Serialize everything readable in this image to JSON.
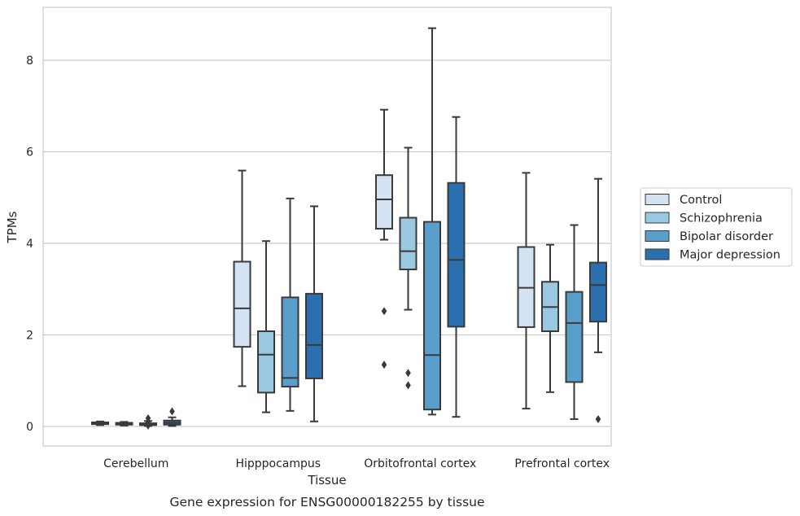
{
  "chart_data": {
    "type": "boxplot",
    "title": "",
    "caption": "Gene expression for ENSG00000182255 by tissue",
    "xlabel": "Tissue",
    "ylabel": "TPMs",
    "ylim": [
      -0.42,
      9.3
    ],
    "yticks": [
      0,
      2,
      4,
      6,
      8
    ],
    "grid": "horizontal",
    "legend_position": "right",
    "categories": [
      "Cerebellum",
      "Hipppocampus",
      "Orbitofrontal cortex",
      "Prefrontal cortex"
    ],
    "series": [
      {
        "name": "Control",
        "color": "#d3e3f3",
        "boxes": [
          {
            "whislo": 0.03,
            "q1": 0.05,
            "med": 0.07,
            "q3": 0.09,
            "whishi": 0.11,
            "fliers": []
          },
          {
            "whislo": 0.88,
            "q1": 1.74,
            "med": 2.58,
            "q3": 3.6,
            "whishi": 5.59,
            "fliers": []
          },
          {
            "whislo": 4.08,
            "q1": 4.32,
            "med": 4.96,
            "q3": 5.49,
            "whishi": 6.92,
            "fliers": [
              2.52,
              1.35
            ]
          },
          {
            "whislo": 0.39,
            "q1": 2.17,
            "med": 3.03,
            "q3": 3.92,
            "whishi": 5.54,
            "fliers": []
          }
        ]
      },
      {
        "name": "Schizophrenia",
        "color": "#9ac8e0",
        "boxes": [
          {
            "whislo": 0.02,
            "q1": 0.04,
            "med": 0.06,
            "q3": 0.08,
            "whishi": 0.1,
            "fliers": []
          },
          {
            "whislo": 0.31,
            "q1": 0.74,
            "med": 1.57,
            "q3": 2.08,
            "whishi": 4.05,
            "fliers": []
          },
          {
            "whislo": 2.55,
            "q1": 3.43,
            "med": 3.83,
            "q3": 4.56,
            "whishi": 6.09,
            "fliers": [
              1.17,
              0.9
            ]
          },
          {
            "whislo": 0.75,
            "q1": 2.08,
            "med": 2.61,
            "q3": 3.16,
            "whishi": 3.97,
            "fliers": []
          }
        ]
      },
      {
        "name": "Bipolar disorder",
        "color": "#5a9ecc",
        "boxes": [
          {
            "whislo": 0.01,
            "q1": 0.03,
            "med": 0.05,
            "q3": 0.07,
            "whishi": 0.12,
            "fliers": [
              0.18,
              0.1,
              0.02
            ]
          },
          {
            "whislo": 0.34,
            "q1": 0.87,
            "med": 1.06,
            "q3": 2.82,
            "whishi": 4.98,
            "fliers": []
          },
          {
            "whislo": 0.26,
            "q1": 0.37,
            "med": 1.56,
            "q3": 4.47,
            "whishi": 8.7,
            "fliers": []
          },
          {
            "whislo": 0.16,
            "q1": 0.97,
            "med": 2.26,
            "q3": 2.94,
            "whishi": 4.4,
            "fliers": []
          }
        ]
      },
      {
        "name": "Major depression",
        "color": "#2b6faf",
        "boxes": [
          {
            "whislo": 0.01,
            "q1": 0.04,
            "med": 0.08,
            "q3": 0.13,
            "whishi": 0.2,
            "fliers": [
              0.33
            ]
          },
          {
            "whislo": 0.11,
            "q1": 1.05,
            "med": 1.78,
            "q3": 2.9,
            "whishi": 4.81,
            "fliers": []
          },
          {
            "whislo": 0.21,
            "q1": 2.18,
            "med": 3.64,
            "q3": 5.32,
            "whishi": 6.76,
            "fliers": []
          },
          {
            "whislo": 1.62,
            "q1": 2.29,
            "med": 3.09,
            "q3": 3.58,
            "whishi": 5.41,
            "fliers": [
              0.16
            ]
          }
        ]
      }
    ]
  }
}
